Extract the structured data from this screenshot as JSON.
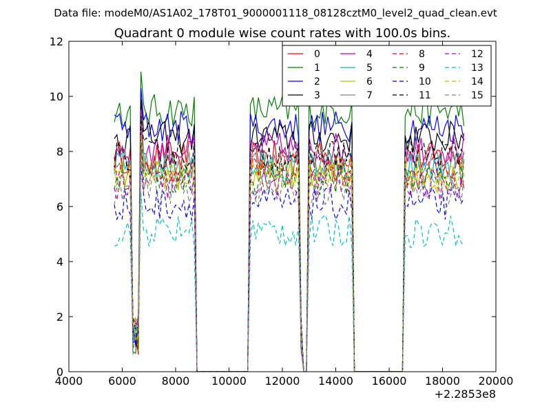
{
  "header": {
    "suptitle": "Data file: modeM0/AS1A02_178T01_9000001118_08128cztM0_level2_quad_clean.evt"
  },
  "chart_data": {
    "type": "line",
    "title": "Quadrant 0 module wise count rates with 100.0s bins.",
    "xlabel": "",
    "ylabel": "",
    "x_offset_label": "+2.2853e8",
    "xlim": [
      4000,
      20000
    ],
    "ylim": [
      0,
      12
    ],
    "xticks": [
      4000,
      6000,
      8000,
      10000,
      12000,
      14000,
      16000,
      18000,
      20000
    ],
    "yticks": [
      0,
      2,
      4,
      6,
      8,
      10,
      12
    ],
    "grid": false,
    "legend_placement": "top-right",
    "legend_columns": 4,
    "series": [
      {
        "name": "0",
        "color": "#ff0000",
        "dash": "solid",
        "level": 7.8
      },
      {
        "name": "1",
        "color": "#008000",
        "dash": "solid",
        "level": 9.5
      },
      {
        "name": "2",
        "color": "#0000ff",
        "dash": "solid",
        "level": 8.9
      },
      {
        "name": "3",
        "color": "#000000",
        "dash": "solid",
        "level": 8.5
      },
      {
        "name": "4",
        "color": "#bf00bf",
        "dash": "solid",
        "level": 8.1
      },
      {
        "name": "5",
        "color": "#00bfbf",
        "dash": "solid",
        "level": 7.4
      },
      {
        "name": "6",
        "color": "#bfbf00",
        "dash": "solid",
        "level": 7.1
      },
      {
        "name": "7",
        "color": "#808080",
        "dash": "solid",
        "level": 7.6
      },
      {
        "name": "8",
        "color": "#ff0000",
        "dash": "dashed",
        "level": 7.3
      },
      {
        "name": "9",
        "color": "#008000",
        "dash": "dashed",
        "level": 7.0
      },
      {
        "name": "10",
        "color": "#0000ff",
        "dash": "dashed",
        "level": 6.1
      },
      {
        "name": "11",
        "color": "#000000",
        "dash": "dashed",
        "level": 7.9
      },
      {
        "name": "12",
        "color": "#bf00bf",
        "dash": "dashed",
        "level": 6.8
      },
      {
        "name": "13",
        "color": "#00bfbf",
        "dash": "dashed",
        "level": 5.1
      },
      {
        "name": "14",
        "color": "#bfbf00",
        "dash": "dashed",
        "level": 7.2
      },
      {
        "name": "15",
        "color": "#808080",
        "dash": "dashed",
        "level": 6.6
      }
    ],
    "on_segments": [
      [
        5700,
        8700
      ],
      [
        10800,
        12700
      ],
      [
        13000,
        14600
      ],
      [
        16600,
        18800
      ]
    ],
    "dips": [
      6500,
      12800
    ],
    "bin_size": 100,
    "low_value": 0.0
  }
}
